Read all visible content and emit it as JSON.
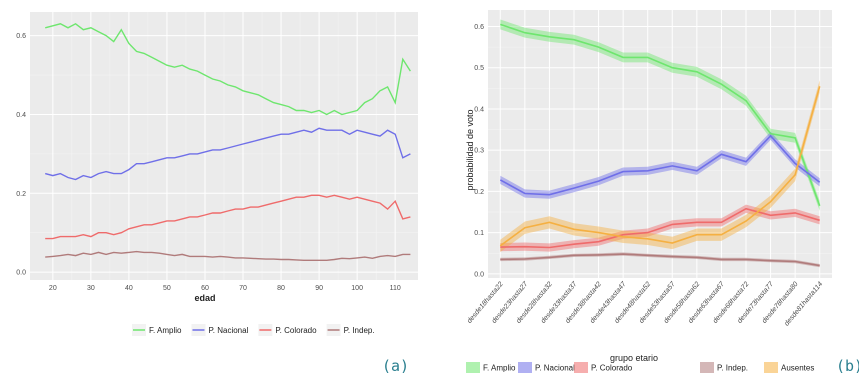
{
  "chart_data": [
    {
      "type": "line",
      "panel_label": "(a)",
      "xlabel": "edad",
      "ylabel": "",
      "xlim": [
        14,
        116
      ],
      "ylim": [
        -0.02,
        0.66
      ],
      "x_ticks": [
        20,
        30,
        40,
        50,
        60,
        70,
        80,
        90,
        100,
        110
      ],
      "y_ticks": [
        0.0,
        0.2,
        0.4,
        0.6
      ],
      "y_tick_labels": [
        "0.0",
        "0.2",
        "0.4",
        "0.6"
      ],
      "grid": true,
      "legend_position": "bottom",
      "series": [
        {
          "name": "F. Amplio",
          "color": "#6ee66e",
          "x": [
            18,
            20,
            22,
            24,
            26,
            28,
            30,
            32,
            34,
            36,
            38,
            40,
            42,
            44,
            46,
            48,
            50,
            52,
            54,
            56,
            58,
            60,
            62,
            64,
            66,
            68,
            70,
            72,
            74,
            76,
            78,
            80,
            82,
            84,
            86,
            88,
            90,
            92,
            94,
            96,
            98,
            100,
            102,
            104,
            106,
            108,
            110,
            112,
            114
          ],
          "y": [
            0.62,
            0.625,
            0.63,
            0.62,
            0.63,
            0.615,
            0.62,
            0.61,
            0.6,
            0.585,
            0.615,
            0.58,
            0.56,
            0.555,
            0.545,
            0.535,
            0.525,
            0.52,
            0.525,
            0.515,
            0.51,
            0.5,
            0.49,
            0.485,
            0.475,
            0.47,
            0.46,
            0.455,
            0.45,
            0.44,
            0.43,
            0.425,
            0.42,
            0.41,
            0.41,
            0.405,
            0.41,
            0.4,
            0.41,
            0.4,
            0.405,
            0.41,
            0.43,
            0.44,
            0.46,
            0.47,
            0.43,
            0.54,
            0.51
          ]
        },
        {
          "name": "P. Nacional",
          "color": "#6f6fe8",
          "x": [
            18,
            20,
            22,
            24,
            26,
            28,
            30,
            32,
            34,
            36,
            38,
            40,
            42,
            44,
            46,
            48,
            50,
            52,
            54,
            56,
            58,
            60,
            62,
            64,
            66,
            68,
            70,
            72,
            74,
            76,
            78,
            80,
            82,
            84,
            86,
            88,
            90,
            92,
            94,
            96,
            98,
            100,
            102,
            104,
            106,
            108,
            110,
            112,
            114
          ],
          "y": [
            0.25,
            0.245,
            0.25,
            0.24,
            0.235,
            0.245,
            0.24,
            0.25,
            0.255,
            0.25,
            0.25,
            0.26,
            0.275,
            0.275,
            0.28,
            0.285,
            0.29,
            0.29,
            0.295,
            0.3,
            0.3,
            0.305,
            0.31,
            0.31,
            0.315,
            0.32,
            0.325,
            0.33,
            0.335,
            0.34,
            0.345,
            0.35,
            0.35,
            0.355,
            0.36,
            0.355,
            0.365,
            0.36,
            0.36,
            0.36,
            0.35,
            0.36,
            0.355,
            0.35,
            0.345,
            0.36,
            0.35,
            0.29,
            0.3
          ]
        },
        {
          "name": "P. Colorado",
          "color": "#ef6b6b",
          "x": [
            18,
            20,
            22,
            24,
            26,
            28,
            30,
            32,
            34,
            36,
            38,
            40,
            42,
            44,
            46,
            48,
            50,
            52,
            54,
            56,
            58,
            60,
            62,
            64,
            66,
            68,
            70,
            72,
            74,
            76,
            78,
            80,
            82,
            84,
            86,
            88,
            90,
            92,
            94,
            96,
            98,
            100,
            102,
            104,
            106,
            108,
            110,
            112,
            114
          ],
          "y": [
            0.085,
            0.085,
            0.09,
            0.09,
            0.09,
            0.095,
            0.09,
            0.1,
            0.1,
            0.095,
            0.1,
            0.11,
            0.115,
            0.12,
            0.12,
            0.125,
            0.13,
            0.13,
            0.135,
            0.14,
            0.14,
            0.145,
            0.15,
            0.15,
            0.155,
            0.16,
            0.16,
            0.165,
            0.165,
            0.17,
            0.175,
            0.18,
            0.185,
            0.19,
            0.19,
            0.195,
            0.195,
            0.19,
            0.195,
            0.19,
            0.185,
            0.19,
            0.185,
            0.18,
            0.175,
            0.16,
            0.18,
            0.135,
            0.14
          ]
        },
        {
          "name": "P. Indep.",
          "color": "#b07b7b",
          "x": [
            18,
            20,
            22,
            24,
            26,
            28,
            30,
            32,
            34,
            36,
            38,
            40,
            42,
            44,
            46,
            48,
            50,
            52,
            54,
            56,
            58,
            60,
            62,
            64,
            66,
            68,
            70,
            72,
            74,
            76,
            78,
            80,
            82,
            84,
            86,
            88,
            90,
            92,
            94,
            96,
            98,
            100,
            102,
            104,
            106,
            108,
            110,
            112,
            114
          ],
          "y": [
            0.038,
            0.04,
            0.042,
            0.045,
            0.042,
            0.048,
            0.045,
            0.05,
            0.045,
            0.05,
            0.048,
            0.05,
            0.052,
            0.05,
            0.05,
            0.048,
            0.045,
            0.042,
            0.045,
            0.04,
            0.04,
            0.04,
            0.038,
            0.04,
            0.038,
            0.036,
            0.036,
            0.035,
            0.034,
            0.033,
            0.033,
            0.032,
            0.032,
            0.031,
            0.03,
            0.03,
            0.03,
            0.03,
            0.032,
            0.035,
            0.034,
            0.036,
            0.038,
            0.035,
            0.04,
            0.042,
            0.04,
            0.045,
            0.045
          ]
        }
      ]
    },
    {
      "type": "line",
      "panel_label": "(b)",
      "xlabel": "grupo etario",
      "ylabel": "probabilidad de voto",
      "ylim": [
        -0.01,
        0.64
      ],
      "y_ticks": [
        0.0,
        0.1,
        0.2,
        0.3,
        0.4,
        0.5,
        0.6
      ],
      "y_tick_labels": [
        "0.0",
        "0.1",
        "0.2",
        "0.3",
        "0.4",
        "0.5",
        "0.6"
      ],
      "grid": true,
      "legend_position": "bottom",
      "categories": [
        "desde18hasta22",
        "desde23hasta27",
        "desde28hasta32",
        "desde33hasta37",
        "desde38hasta42",
        "desde43hasta47",
        "desde48hasta52",
        "desde53hasta57",
        "desde58hasta62",
        "desde63hasta67",
        "desde68hasta72",
        "desde73hasta77",
        "desde78hasta80",
        "desde81hasta114"
      ],
      "series": [
        {
          "name": "F. Amplio",
          "color": "#6ee66e",
          "values": [
            0.605,
            0.585,
            0.575,
            0.568,
            0.55,
            0.525,
            0.525,
            0.5,
            0.49,
            0.46,
            0.42,
            0.34,
            0.33,
            0.165
          ],
          "band": 0.012
        },
        {
          "name": "P. Nacional",
          "color": "#6f6fe8",
          "values": [
            0.228,
            0.195,
            0.192,
            0.208,
            0.225,
            0.248,
            0.25,
            0.262,
            0.25,
            0.29,
            0.272,
            0.335,
            0.268,
            0.222
          ],
          "band": 0.01
        },
        {
          "name": "P. Colorado",
          "color": "#ef6b6b",
          "values": [
            0.065,
            0.066,
            0.064,
            0.072,
            0.078,
            0.095,
            0.1,
            0.12,
            0.125,
            0.125,
            0.158,
            0.142,
            0.148,
            0.13
          ],
          "band": 0.01
        },
        {
          "name": "P. Indep.",
          "color": "#b07b7b",
          "values": [
            0.035,
            0.036,
            0.04,
            0.045,
            0.046,
            0.048,
            0.045,
            0.042,
            0.04,
            0.035,
            0.035,
            0.032,
            0.03,
            0.02
          ],
          "band": 0.004
        },
        {
          "name": "Ausentes",
          "color": "#f5b042",
          "values": [
            0.068,
            0.112,
            0.125,
            0.108,
            0.1,
            0.09,
            0.085,
            0.075,
            0.095,
            0.095,
            0.128,
            0.175,
            0.24,
            0.455
          ],
          "band": 0.015
        }
      ]
    }
  ]
}
